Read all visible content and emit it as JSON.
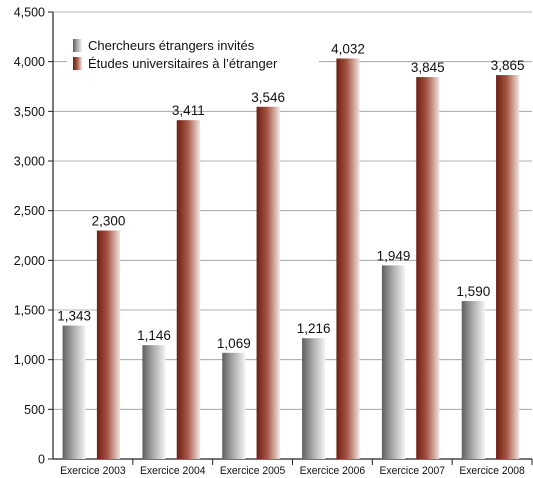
{
  "chart_data": {
    "type": "bar",
    "categories": [
      "Exercice 2003",
      "Exercice 2004",
      "Exercice 2005",
      "Exercice 2006",
      "Exercice 2007",
      "Exercice 2008"
    ],
    "series": [
      {
        "name": "Chercheurs étrangers invités",
        "values": [
          1343,
          1146,
          1069,
          1216,
          1949,
          1590
        ],
        "labels": [
          "1,343",
          "1,146",
          "1,069",
          "1,216",
          "1,949",
          "1,590"
        ],
        "color": "#8a8a8a"
      },
      {
        "name": "Études universitaires à l’étranger",
        "values": [
          2300,
          3411,
          3546,
          4032,
          3845,
          3865
        ],
        "labels": [
          "2,300",
          "3,411",
          "3,546",
          "4,032",
          "3,845",
          "3,865"
        ],
        "color": "#8b3a2a"
      }
    ],
    "ylim": [
      0,
      4500
    ],
    "yticks": [
      0,
      500,
      1000,
      1500,
      2000,
      2500,
      3000,
      3500,
      4000,
      4500
    ],
    "ytick_labels": [
      "0",
      "500",
      "1,000",
      "1,500",
      "2,000",
      "2,500",
      "3,000",
      "3,500",
      "4,000",
      "4,500"
    ],
    "grid": "horizontal",
    "legend_position": "top-left"
  }
}
